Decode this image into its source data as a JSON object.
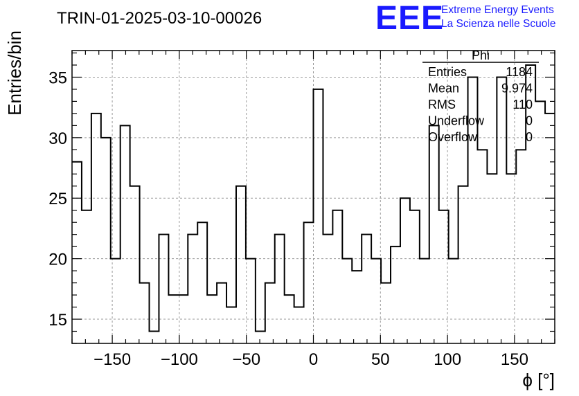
{
  "header": {
    "run_title": "TRIN-01-2025-03-10-00026",
    "logo_text": "EEE",
    "logo_line1": "Extreme Energy Events",
    "logo_line2": "La Scienza nelle Scuole"
  },
  "stats_box": {
    "name": "Phi",
    "rows": [
      {
        "label": "Entries",
        "value": "1184"
      },
      {
        "label": "Mean",
        "value": "9.974"
      },
      {
        "label": "RMS",
        "value": "110"
      },
      {
        "label": "Underflow",
        "value": "0"
      },
      {
        "label": "Overflow",
        "value": "0"
      }
    ]
  },
  "colors": {
    "histogram": "#000000",
    "grid": "#9a9a9a",
    "logo": "#1a1aff"
  },
  "chart_data": {
    "type": "bar",
    "histogram": true,
    "title": "",
    "xlabel": "ϕ [°]",
    "ylabel": "Entries/bin",
    "xlim": [
      -180,
      180
    ],
    "ylim": [
      13,
      37.2
    ],
    "bin_width": 7.2,
    "x_ticks": [
      -150,
      -100,
      -50,
      0,
      50,
      100,
      150
    ],
    "x_tick_labels": [
      "−150",
      "−100",
      "−50",
      "0",
      "50",
      "100",
      "150"
    ],
    "y_ticks": [
      15,
      20,
      25,
      30,
      35
    ],
    "y_tick_labels": [
      "15",
      "20",
      "25",
      "30",
      "35"
    ],
    "grid": true,
    "bin_edges_start": -180,
    "values": [
      28,
      24,
      32,
      30,
      20,
      31,
      26,
      18,
      14,
      22,
      17,
      17,
      22,
      23,
      17,
      18,
      16,
      26,
      20,
      14,
      18,
      22,
      17,
      16,
      23,
      34,
      22,
      24,
      20,
      19,
      22,
      20,
      18,
      21,
      25,
      24,
      20,
      31,
      24,
      20,
      26,
      35,
      29,
      27,
      35,
      27,
      29,
      36,
      33,
      32
    ]
  }
}
